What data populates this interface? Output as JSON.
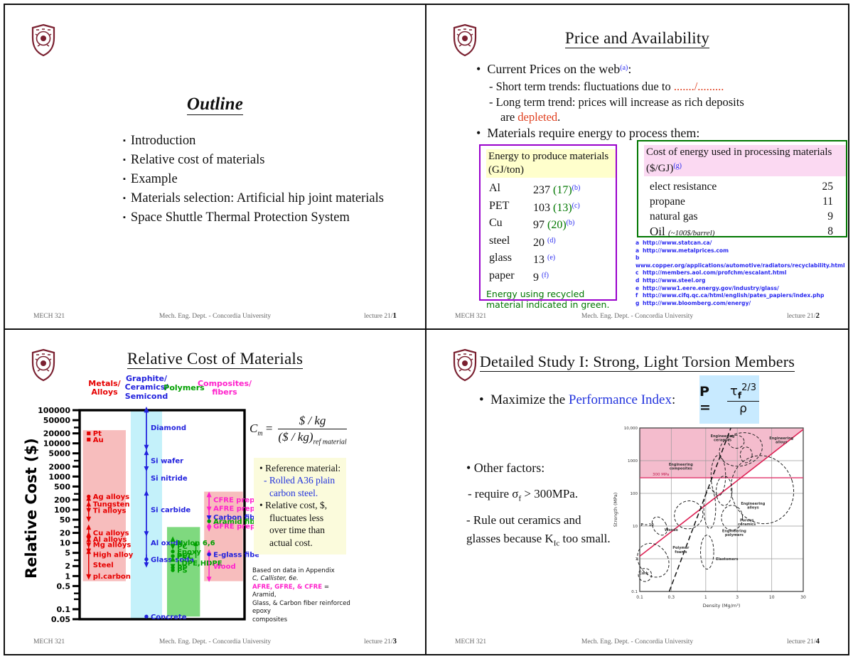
{
  "footer": {
    "left": "MECH 321",
    "center": "Mech. Eng. Dept. - Concordia University",
    "right_prefix": "lecture 21/"
  },
  "slide1": {
    "title": "Outline",
    "bullets": [
      "Introduction",
      "Relative cost of materials",
      "Example",
      "Materials selection: Artificial hip joint materials",
      "Space Shuttle Thermal Protection System"
    ],
    "page": "1"
  },
  "slide2": {
    "title": "Price and Availability",
    "b1": "Current Prices on the web",
    "b1_sup": "(a)",
    "b1_colon": ":",
    "sub1": "- Short term trends:  fluctuations due to ",
    "sub1_red": "......./.........",
    "sub2": "- Long term trend:  prices will increase as rich deposits",
    "sub2b_pre": "are ",
    "sub2b_red": "depleted",
    "sub2b_post": ".",
    "b2": "Materials require energy to process them:",
    "energy_box": {
      "header": "Energy to produce materials (GJ/ton)",
      "rows": [
        {
          "material": "Al",
          "value": "237",
          "recycled": "(17)",
          "ref": "(b)"
        },
        {
          "material": "PET",
          "value": "103",
          "recycled": "(13)",
          "ref": "(c)"
        },
        {
          "material": "Cu",
          "value": "97",
          "recycled": "(20)",
          "ref": "(b)"
        },
        {
          "material": "steel",
          "value": "20",
          "recycled": "",
          "ref": "(d)"
        },
        {
          "material": "glass",
          "value": "13",
          "recycled": "",
          "ref": "(e)"
        },
        {
          "material": "paper",
          "value": "9",
          "recycled": "",
          "ref": "(f)"
        }
      ],
      "note_line1": "Energy using recycled",
      "note_line2": "material indicated in green."
    },
    "cost_box": {
      "header": "Cost of energy used in processing materials ($/GJ)",
      "header_sup": "(g)",
      "rows": [
        {
          "label": "elect resistance",
          "value": "25"
        },
        {
          "label": "propane",
          "value": "11"
        },
        {
          "label": "natural gas",
          "value": "9"
        },
        {
          "label": "Oil",
          "note": "(~100$/barrel)",
          "value": "8"
        }
      ]
    },
    "references": [
      {
        "key": "a",
        "url": "http://www.statcan.ca/"
      },
      {
        "key": "a",
        "url": "http://www.metalprices.com"
      },
      {
        "key": "b",
        "url": "www.copper.org/applications/automotive/radiators/recyclability.html"
      },
      {
        "key": "c",
        "url": "http://members.aol.com/profchm/escalant.html"
      },
      {
        "key": "d",
        "url": "http://www.steel.org"
      },
      {
        "key": "e",
        "url": "http://www1.eere.energy.gov/industry/glass/"
      },
      {
        "key": "f",
        "url": "http://www.cifq.qc.ca/html/english/pates_papiers/index.php"
      },
      {
        "key": "g",
        "url": "http://www.bloomberg.com/energy/"
      }
    ],
    "page": "2"
  },
  "slide3": {
    "title": "Relative Cost of Materials",
    "formula": {
      "lhs": "C",
      "lhs_sub": "m",
      "eq": "=",
      "num": "$ / kg",
      "den": "($ / kg)",
      "den_sub": "ref material"
    },
    "notes_box": [
      {
        "t": "• Reference material:",
        "c": "black",
        "ind": 0
      },
      {
        "t": "- Rolled A36 plain",
        "c": "blue",
        "ind": 1
      },
      {
        "t": "carbon steel.",
        "c": "blue",
        "ind": 2
      },
      {
        "t": "• Relative cost, $,",
        "c": "black",
        "ind": 0
      },
      {
        "t": "fluctuates less",
        "c": "black",
        "ind": 2
      },
      {
        "t": "over time than",
        "c": "black",
        "ind": 2
      },
      {
        "t": "actual cost.",
        "c": "black",
        "ind": 2
      }
    ],
    "source_note": {
      "l1": "Based on data in Appendix",
      "l2": "C, Callister, 6e.",
      "l3_hl": "AFRE, GFRE, & CFRE",
      "l3_rest": " = Aramid,",
      "l4": "Glass, & Carbon fiber reinforced epoxy",
      "l5": "composites"
    },
    "chart_data": {
      "type": "scatter",
      "title": "Relative Cost of Materials",
      "ylabel": "Relative Cost ($)",
      "y_scale": "log",
      "y_min": 0.05,
      "y_max": 100000,
      "y_ticks": [
        100000,
        50000,
        20000,
        10000,
        5000,
        2000,
        1000,
        500,
        200,
        100,
        50,
        20,
        10,
        5,
        2,
        1,
        0.5,
        0.1,
        0.05
      ],
      "y_minor_ticks": [
        30000,
        3000,
        300,
        30,
        3,
        0.3,
        0.2
      ],
      "groups": [
        {
          "name": "metals",
          "header": [
            "Metals/",
            "Alloys"
          ],
          "color": "#e60000",
          "band": {
            "x0": 0.02,
            "x1": 0.28,
            "lo": 0.7,
            "hi": 25000,
            "fill": "#f7bdbd"
          },
          "item_x": 0.055,
          "items": [
            {
              "label": "Pt",
              "v": 20000,
              "marker": "sq"
            },
            {
              "label": "Au",
              "v": 13000,
              "marker": "sq"
            },
            {
              "label": "Ag alloys",
              "v": 250,
              "marker": "dot"
            },
            {
              "label": "Tungsten",
              "v": 150,
              "marker": "range",
              "range": [
                100,
                210
              ]
            },
            {
              "label": "Ti alloys",
              "v": 95,
              "marker": "range",
              "range": [
                55,
                140
              ]
            },
            {
              "label": "Cu alloys",
              "v": 20,
              "marker": "range",
              "range": [
                14,
                28
              ]
            },
            {
              "label": "Al alloys",
              "v": 13,
              "marker": "range",
              "range": [
                9,
                17
              ]
            },
            {
              "label": "Mg alloys",
              "v": 9,
              "marker": "range",
              "range": [
                6,
                12
              ]
            },
            {
              "label": "High alloy",
              "v": 4.5,
              "marker": "range",
              "range": [
                1,
                5.2
              ]
            },
            {
              "label": "Steel",
              "v": 2.2,
              "marker": "none"
            },
            {
              "label": "pl.carbon",
              "v": 1,
              "marker": "down"
            }
          ]
        },
        {
          "name": "ceramics",
          "header": [
            "Graphite/",
            "Ceramics/",
            "Semicond"
          ],
          "color": "#2222dd",
          "band": {
            "x0": 0.31,
            "x1": 0.5,
            "lo": 0.05,
            "hi": 100000,
            "fill": "#c4f1fa"
          },
          "item_x": 0.405,
          "spines": [
            {
              "x": 0.405,
              "lo": 2.3,
              "hi": 95000
            }
          ],
          "items": [
            {
              "label": "Diamond",
              "v": 30000,
              "marker": "range",
              "range": [
                8000,
                100000
              ]
            },
            {
              "label": "Si wafer",
              "v": 3000,
              "marker": "range",
              "range": [
                1800,
                5000
              ]
            },
            {
              "label": "Si nitride",
              "v": 900,
              "marker": "none"
            },
            {
              "label": "Si carbide",
              "v": 100,
              "marker": "range",
              "range": [
                20,
                300
              ]
            },
            {
              "label": "Al oxide",
              "v": 10,
              "marker": "none"
            },
            {
              "label": "Glass-soda",
              "v": 3.2,
              "marker": "dot",
              "range": [
                2.3,
                4.5
              ]
            },
            {
              "label": "Concrete",
              "v": 0.06,
              "marker": "dot"
            }
          ]
        },
        {
          "name": "polymers",
          "header": [
            "Polymers"
          ],
          "color": "#00a000",
          "band": {
            "x0": 0.53,
            "x1": 0.73,
            "lo": 0.06,
            "hi": 30,
            "fill": "#7fd97f"
          },
          "item_x": 0.565,
          "items": [
            {
              "label": "Nylon 6,6",
              "v": 10,
              "marker": "updown"
            },
            {
              "label": "PC",
              "v": 8,
              "marker": "down"
            },
            {
              "label": "Epoxy",
              "v": 5.5,
              "marker": "dot"
            },
            {
              "label": "PVC",
              "v": 4,
              "marker": "dot"
            },
            {
              "label": "PET",
              "v": 4.2,
              "marker": "up",
              "x": 0.705,
              "side": "left",
              "range": [
                3.5,
                9
              ]
            },
            {
              "label": "LDPE,HDPE",
              "v": 2.5,
              "marker": "updown"
            },
            {
              "label": "PP",
              "v": 1.8,
              "marker": "dot"
            },
            {
              "label": "PS",
              "v": 1.5,
              "marker": "dot"
            }
          ]
        },
        {
          "name": "composites",
          "header": [
            "Composites/",
            "fibers"
          ],
          "color": "#ff22cc",
          "band": {
            "x0": 0.755,
            "x1": 0.99,
            "lo": 0.7,
            "hi": 350,
            "fill": "#f7bdbd"
          },
          "item_x": 0.785,
          "spines": [
            {
              "x": 0.785,
              "lo": 28,
              "hi": 270
            },
            {
              "x": 0.785,
              "lo": 0.85,
              "hi": 5
            }
          ],
          "items": [
            {
              "label": "CFRE prepreg",
              "v": 200,
              "marker": "range",
              "range": [
                60,
                270
              ]
            },
            {
              "label": "AFRE prepreg",
              "v": 110,
              "marker": "down"
            },
            {
              "label": "Carbon fibers",
              "v": 60,
              "marker": "down",
              "color": "#2222dd"
            },
            {
              "label": "Aramid fibers",
              "v": 45,
              "marker": "dot",
              "color": "#00a000"
            },
            {
              "label": "GFRE prepreg",
              "v": 32,
              "marker": "dot"
            },
            {
              "label": "E-glass fibers",
              "v": 4.5,
              "marker": "dot",
              "color": "#2222dd"
            },
            {
              "label": "Wood",
              "v": 2,
              "marker": "none"
            }
          ]
        }
      ]
    },
    "page": "3"
  },
  "slide4": {
    "title": "Detailed Study I:  Strong, Light Torsion Members",
    "b1_pre": "Maximize the ",
    "b1_hl": "Performance Index",
    "b1_post": ":",
    "formula": {
      "P": "P",
      "eq": "=",
      "tau": "τ",
      "tau_sub": "f",
      "exp": "2/3",
      "rho": "ρ"
    },
    "other": "• Other factors:",
    "f1_pre": "- require σ",
    "f1_sub": "f",
    "f1_post": " > 300MPa.",
    "f2_pre": "- Rule out ceramics and glasses because  K",
    "f2_sub": "Ic",
    "f2_post": "  too small.",
    "ashby": {
      "x_label": "Density (Mg/m³)",
      "y_label": "Strength (MPa)",
      "x_ticks": [
        0.1,
        0.3,
        1,
        3,
        10,
        30
      ],
      "y_ticks": [
        0.1,
        1,
        10,
        100,
        1000,
        10000
      ],
      "y_tick_labels": [
        "0.1",
        "1",
        "10",
        "100",
        "1000",
        "10,000"
      ],
      "x_range": [
        0.1,
        30
      ],
      "y_range": [
        0.1,
        10000
      ],
      "limit_value": 300,
      "limit_label": "300 MPa",
      "region_color": "#f4bccd",
      "guide_line": {
        "from": [
          0.1,
          1.2
        ],
        "to": [
          30,
          9000
        ]
      },
      "dashed_line": {
        "from": [
          0.28,
          0.1
        ],
        "to": [
          2.4,
          10000
        ]
      },
      "ellipses": [
        {
          "d": 3.4,
          "s": 2200,
          "rx": 0.33,
          "ry": 0.5,
          "rot": -15
        },
        {
          "d": 2.9,
          "s": 3800,
          "rx": 0.12,
          "ry": 0.2,
          "rot": 0
        },
        {
          "d": 4.1,
          "s": 1500,
          "rx": 0.09,
          "ry": 0.24,
          "rot": 0
        },
        {
          "d": 1.55,
          "s": 350,
          "rx": 0.11,
          "ry": 0.62,
          "rot": 0
        },
        {
          "d": 1.9,
          "s": 120,
          "rx": 0.12,
          "ry": 0.45,
          "rot": 0
        },
        {
          "d": 7.2,
          "s": 130,
          "rx": 0.47,
          "ry": 1.05,
          "rot": -18
        },
        {
          "d": 1.15,
          "s": 35,
          "rx": 0.09,
          "ry": 0.62,
          "rot": 0
        },
        {
          "d": 2.5,
          "s": 18,
          "rx": 0.16,
          "ry": 0.38,
          "rot": 0
        },
        {
          "d": 0.55,
          "s": 22,
          "rx": 0.22,
          "ry": 0.42,
          "rot": -35
        },
        {
          "d": 0.2,
          "s": 10,
          "rx": 0.1,
          "ry": 0.3,
          "rot": -30
        },
        {
          "d": 1.05,
          "s": 1.6,
          "rx": 0.1,
          "ry": 0.52,
          "rot": 0
        },
        {
          "d": 0.16,
          "s": 0.9,
          "rx": 0.22,
          "ry": 0.55,
          "rot": -35
        },
        {
          "d": 0.12,
          "s": 0.32,
          "rx": 0.1,
          "ry": 0.2,
          "rot": 0
        }
      ],
      "labels": [
        {
          "t": "Engineering",
          "t2": "ceramics",
          "d": 1.8,
          "s": 5200
        },
        {
          "t": "Engineering",
          "t2": "alloys",
          "d": 14,
          "s": 4500
        },
        {
          "t": "Engineering",
          "t2": "composites",
          "d": 0.42,
          "s": 700
        },
        {
          "t": "Engineering",
          "t2": "alloys",
          "d": 5.2,
          "s": 45
        },
        {
          "t": "Engineering",
          "t2": "polymers",
          "d": 2.7,
          "s": 6.5
        },
        {
          "t": "Porous",
          "t2": "ceramics",
          "d": 4.2,
          "s": 14
        },
        {
          "t": "Woods",
          "d": 0.3,
          "s": 7
        },
        {
          "t": "Elastomers",
          "d": 2.1,
          "s": 0.9
        },
        {
          "t": "Polymer",
          "t2": "foams",
          "d": 0.42,
          "s": 2.0
        },
        {
          "t": "Cork",
          "d": 0.115,
          "s": 0.33
        },
        {
          "t": "P = 10",
          "d": 0.13,
          "s": 10
        }
      ]
    },
    "page": "4"
  }
}
